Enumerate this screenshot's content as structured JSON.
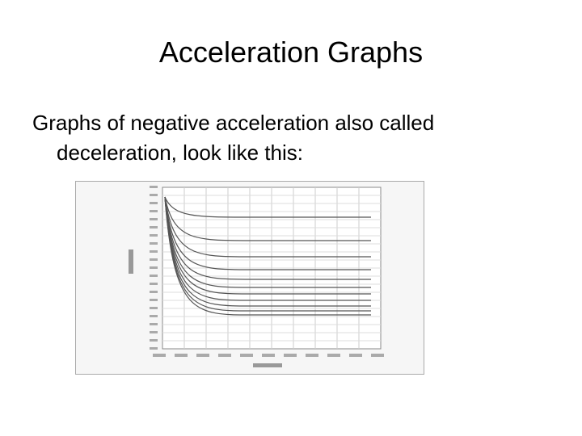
{
  "slide": {
    "title": "Acceleration Graphs",
    "body": "Graphs of negative acceleration also called deceleration, look like this:"
  }
}
